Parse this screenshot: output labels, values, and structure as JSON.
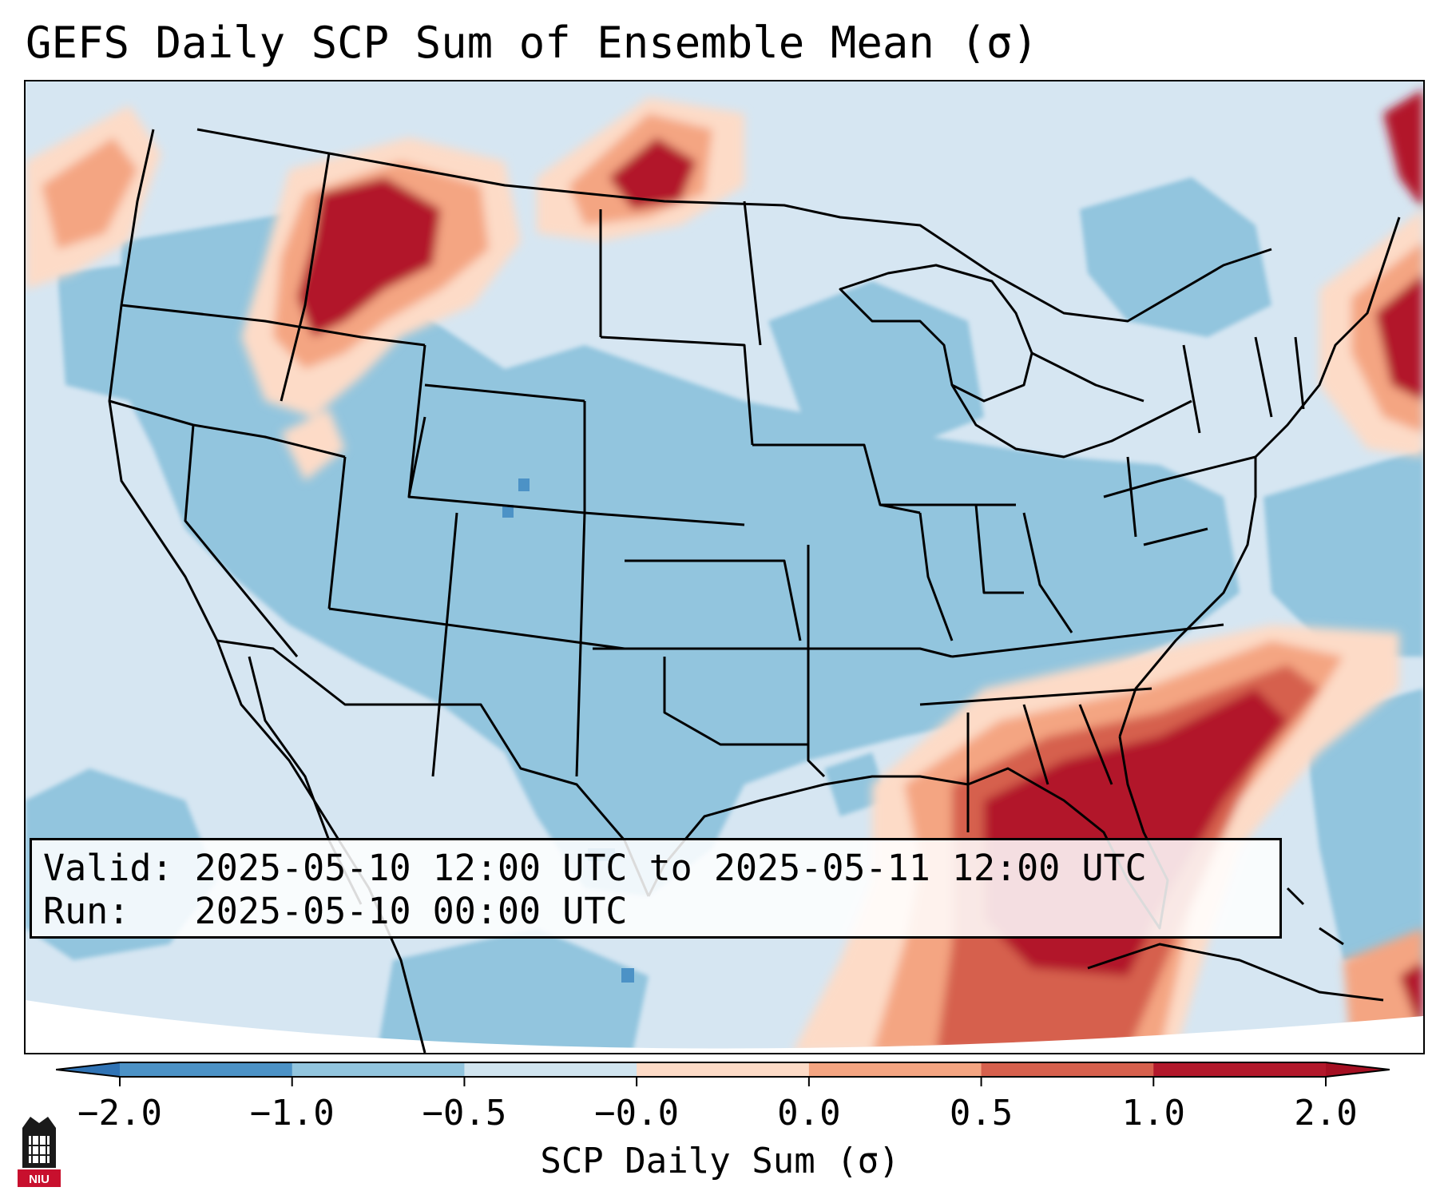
{
  "title": "GEFS Daily SCP Sum of Ensemble Mean (σ)",
  "info": {
    "valid_label": "Valid:",
    "valid_value": "2025-05-10 12:00 UTC to 2025-05-11 12:00 UTC",
    "run_label": "Run:",
    "run_value": "2025-05-10 00:00 UTC"
  },
  "colorbar": {
    "label": "SCP Daily Sum (σ)",
    "ticks": [
      "−2.0",
      "−1.0",
      "−0.5",
      "−0.0",
      "0.0",
      "0.5",
      "1.0",
      "2.0"
    ],
    "bin_colors": [
      "#4c92c6",
      "#92c5de",
      "#d1e5f0",
      "#fddbc7",
      "#f4a582",
      "#d6604d",
      "#b2182b"
    ],
    "extend_low_color": "#2f73b5",
    "extend_high_color": "#a50f22"
  },
  "map": {
    "background_color": "#d6e6f2",
    "field_regions": [
      {
        "name": "Pacific Northwest high",
        "level": "high",
        "color": "#b2182b"
      },
      {
        "name": "Northern Montana high",
        "level": "high",
        "color": "#b2182b"
      },
      {
        "name": "Florida and Gulf high",
        "level": "high",
        "color": "#b2182b"
      },
      {
        "name": "New England coast high",
        "level": "high",
        "color": "#b2182b"
      },
      {
        "name": "Central US negative",
        "level": "negative",
        "color": "#92c5de"
      }
    ]
  },
  "logo": {
    "text": "NIU"
  }
}
